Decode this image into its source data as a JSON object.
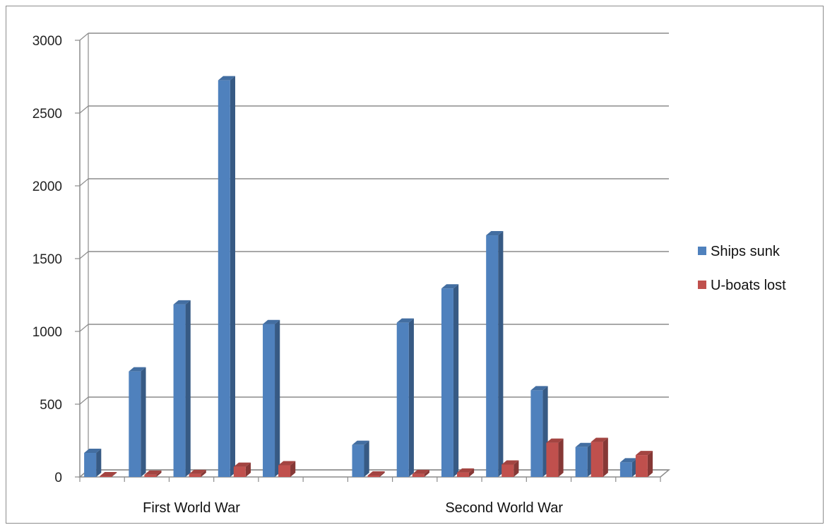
{
  "chart_data": {
    "type": "bar",
    "style": "3d-clustered-column",
    "groups": [
      "First World War",
      "Second World War"
    ],
    "group_sizes": [
      5,
      7
    ],
    "series": [
      {
        "name": "Ships sunk",
        "color": "#4f81bd",
        "values": [
          165,
          725,
          1185,
          2725,
          1050,
          220,
          1060,
          1295,
          1660,
          595,
          205,
          100
        ]
      },
      {
        "name": "U-boats lost",
        "color": "#c0504d",
        "values": [
          5,
          15,
          20,
          70,
          80,
          10,
          20,
          30,
          85,
          235,
          240,
          150
        ]
      }
    ],
    "yticks": [
      "0",
      "500",
      "1000",
      "1500",
      "2000",
      "2500",
      "3000"
    ],
    "ylim": [
      0,
      3000
    ],
    "grid": true,
    "legend": "right"
  }
}
